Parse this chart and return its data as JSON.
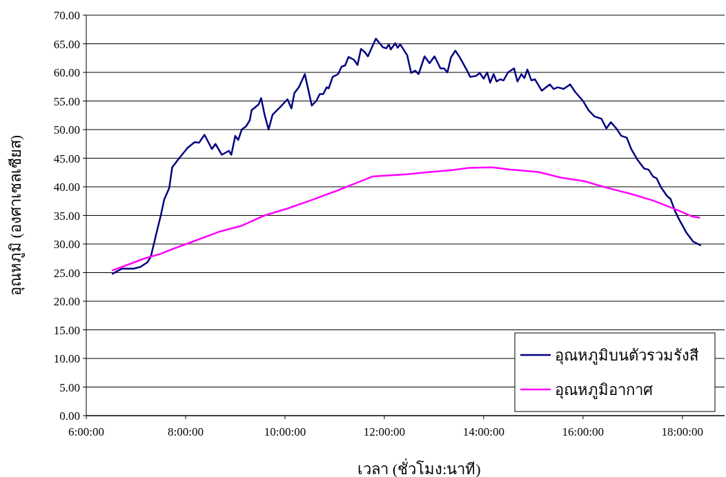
{
  "chart_data": {
    "type": "line",
    "xlabel": "เวลา (ชั่วโมง:นาที)",
    "ylabel": "อุณหภูมิ (องศาเซลเซียส)",
    "xlim": [
      6,
      18.85
    ],
    "xticks": [
      {
        "value": 6,
        "label": "6:00:00"
      },
      {
        "value": 8,
        "label": "8:00:00"
      },
      {
        "value": 10,
        "label": "10:00:00"
      },
      {
        "value": 12,
        "label": "12:00:00"
      },
      {
        "value": 14,
        "label": "14:00:00"
      },
      {
        "value": 16,
        "label": "16:00:00"
      },
      {
        "value": 18,
        "label": "18:00:00"
      }
    ],
    "ylim": [
      0,
      70
    ],
    "yticks": [
      {
        "value": 0,
        "label": "0.00"
      },
      {
        "value": 5,
        "label": "5.00"
      },
      {
        "value": 10,
        "label": "10.00"
      },
      {
        "value": 15,
        "label": "15.00"
      },
      {
        "value": 20,
        "label": "20.00"
      },
      {
        "value": 25,
        "label": "25.00"
      },
      {
        "value": 30,
        "label": "30.00"
      },
      {
        "value": 35,
        "label": "35.00"
      },
      {
        "value": 40,
        "label": "40.00"
      },
      {
        "value": 45,
        "label": "45.00"
      },
      {
        "value": 50,
        "label": "50.00"
      },
      {
        "value": 55,
        "label": "55.00"
      },
      {
        "value": 60,
        "label": "60.00"
      },
      {
        "value": 65,
        "label": "65.00"
      },
      {
        "value": 70,
        "label": "70.00"
      }
    ],
    "grid": "y",
    "legend": "bottom right",
    "marker": "none",
    "line_style": "solid",
    "series": [
      {
        "name": "อุณหภูมิบนตัวรวมรังสี",
        "color": "#000080",
        "x": [
          6.53,
          6.72,
          6.95,
          7.09,
          7.23,
          7.3,
          7.41,
          7.5,
          7.57,
          7.67,
          7.73,
          7.87,
          8.04,
          8.18,
          8.27,
          8.38,
          8.53,
          8.6,
          8.73,
          8.87,
          8.92,
          9.0,
          9.06,
          9.13,
          9.22,
          9.29,
          9.33,
          9.47,
          9.52,
          9.59,
          9.67,
          9.75,
          9.91,
          10.05,
          10.13,
          10.19,
          10.28,
          10.4,
          10.54,
          10.63,
          10.7,
          10.77,
          10.84,
          10.88,
          10.96,
          11.07,
          11.14,
          11.21,
          11.28,
          11.39,
          11.46,
          11.53,
          11.6,
          11.67,
          11.74,
          11.83,
          11.97,
          12.04,
          12.09,
          12.13,
          12.22,
          12.27,
          12.32,
          12.46,
          12.54,
          12.62,
          12.69,
          12.81,
          12.91,
          13.01,
          13.13,
          13.2,
          13.27,
          13.34,
          13.43,
          13.52,
          13.66,
          13.73,
          13.85,
          13.92,
          14.0,
          14.07,
          14.13,
          14.2,
          14.26,
          14.33,
          14.4,
          14.49,
          14.61,
          14.68,
          14.76,
          14.82,
          14.88,
          14.96,
          15.03,
          15.17,
          15.33,
          15.41,
          15.49,
          15.61,
          15.74,
          15.84,
          16.0,
          16.11,
          16.23,
          16.37,
          16.47,
          16.56,
          16.67,
          16.77,
          16.88,
          16.97,
          17.09,
          17.23,
          17.32,
          17.41,
          17.48,
          17.57,
          17.69,
          17.76,
          17.85,
          17.94,
          18.08,
          18.22,
          18.36
        ],
        "values": [
          24.8,
          25.7,
          25.7,
          26.0,
          26.8,
          27.8,
          31.8,
          35.0,
          37.8,
          39.8,
          43.4,
          45.0,
          46.8,
          47.8,
          47.7,
          49.1,
          46.6,
          47.5,
          45.6,
          46.3,
          45.6,
          48.9,
          48.2,
          50.0,
          50.6,
          51.6,
          53.4,
          54.4,
          55.5,
          52.6,
          50.0,
          52.6,
          54.0,
          55.3,
          53.7,
          56.4,
          57.4,
          59.7,
          54.2,
          55.0,
          56.2,
          56.2,
          57.4,
          57.2,
          59.2,
          59.7,
          61.0,
          61.2,
          62.7,
          62.2,
          61.3,
          64.1,
          63.6,
          62.8,
          64.2,
          65.9,
          64.4,
          64.2,
          64.9,
          64.0,
          65.1,
          64.3,
          64.9,
          63.0,
          59.9,
          60.3,
          59.7,
          62.8,
          61.6,
          62.8,
          60.7,
          60.7,
          60.0,
          62.6,
          63.8,
          62.6,
          60.4,
          59.2,
          59.4,
          59.9,
          58.9,
          60.0,
          58.2,
          59.7,
          58.4,
          58.8,
          58.6,
          60.0,
          60.7,
          58.4,
          59.7,
          59.0,
          60.5,
          58.6,
          58.8,
          56.8,
          57.9,
          57.1,
          57.4,
          57.1,
          57.9,
          56.6,
          55.0,
          53.4,
          52.3,
          51.9,
          50.2,
          51.3,
          50.2,
          48.9,
          48.6,
          46.6,
          44.8,
          43.2,
          43.0,
          41.8,
          41.5,
          39.9,
          38.4,
          37.9,
          35.8,
          34.2,
          32.0,
          30.4,
          29.8
        ]
      },
      {
        "name": "อุณหภูมิอากาศ",
        "color": "#ff00ff",
        "x": [
          6.53,
          6.81,
          7.18,
          7.5,
          7.73,
          8.2,
          8.66,
          9.13,
          9.59,
          10.05,
          10.51,
          11.07,
          11.76,
          12.46,
          12.92,
          13.34,
          13.71,
          14.17,
          14.54,
          15.1,
          15.56,
          16.02,
          16.49,
          16.95,
          17.41,
          17.88,
          18.2,
          18.34
        ],
        "values": [
          25.4,
          26.3,
          27.5,
          28.3,
          29.1,
          30.6,
          32.1,
          33.2,
          35.0,
          36.2,
          37.6,
          39.4,
          41.8,
          42.2,
          42.6,
          42.9,
          43.3,
          43.4,
          43.0,
          42.6,
          41.6,
          41.0,
          39.8,
          38.8,
          37.6,
          36.0,
          34.8,
          34.6
        ]
      }
    ]
  }
}
